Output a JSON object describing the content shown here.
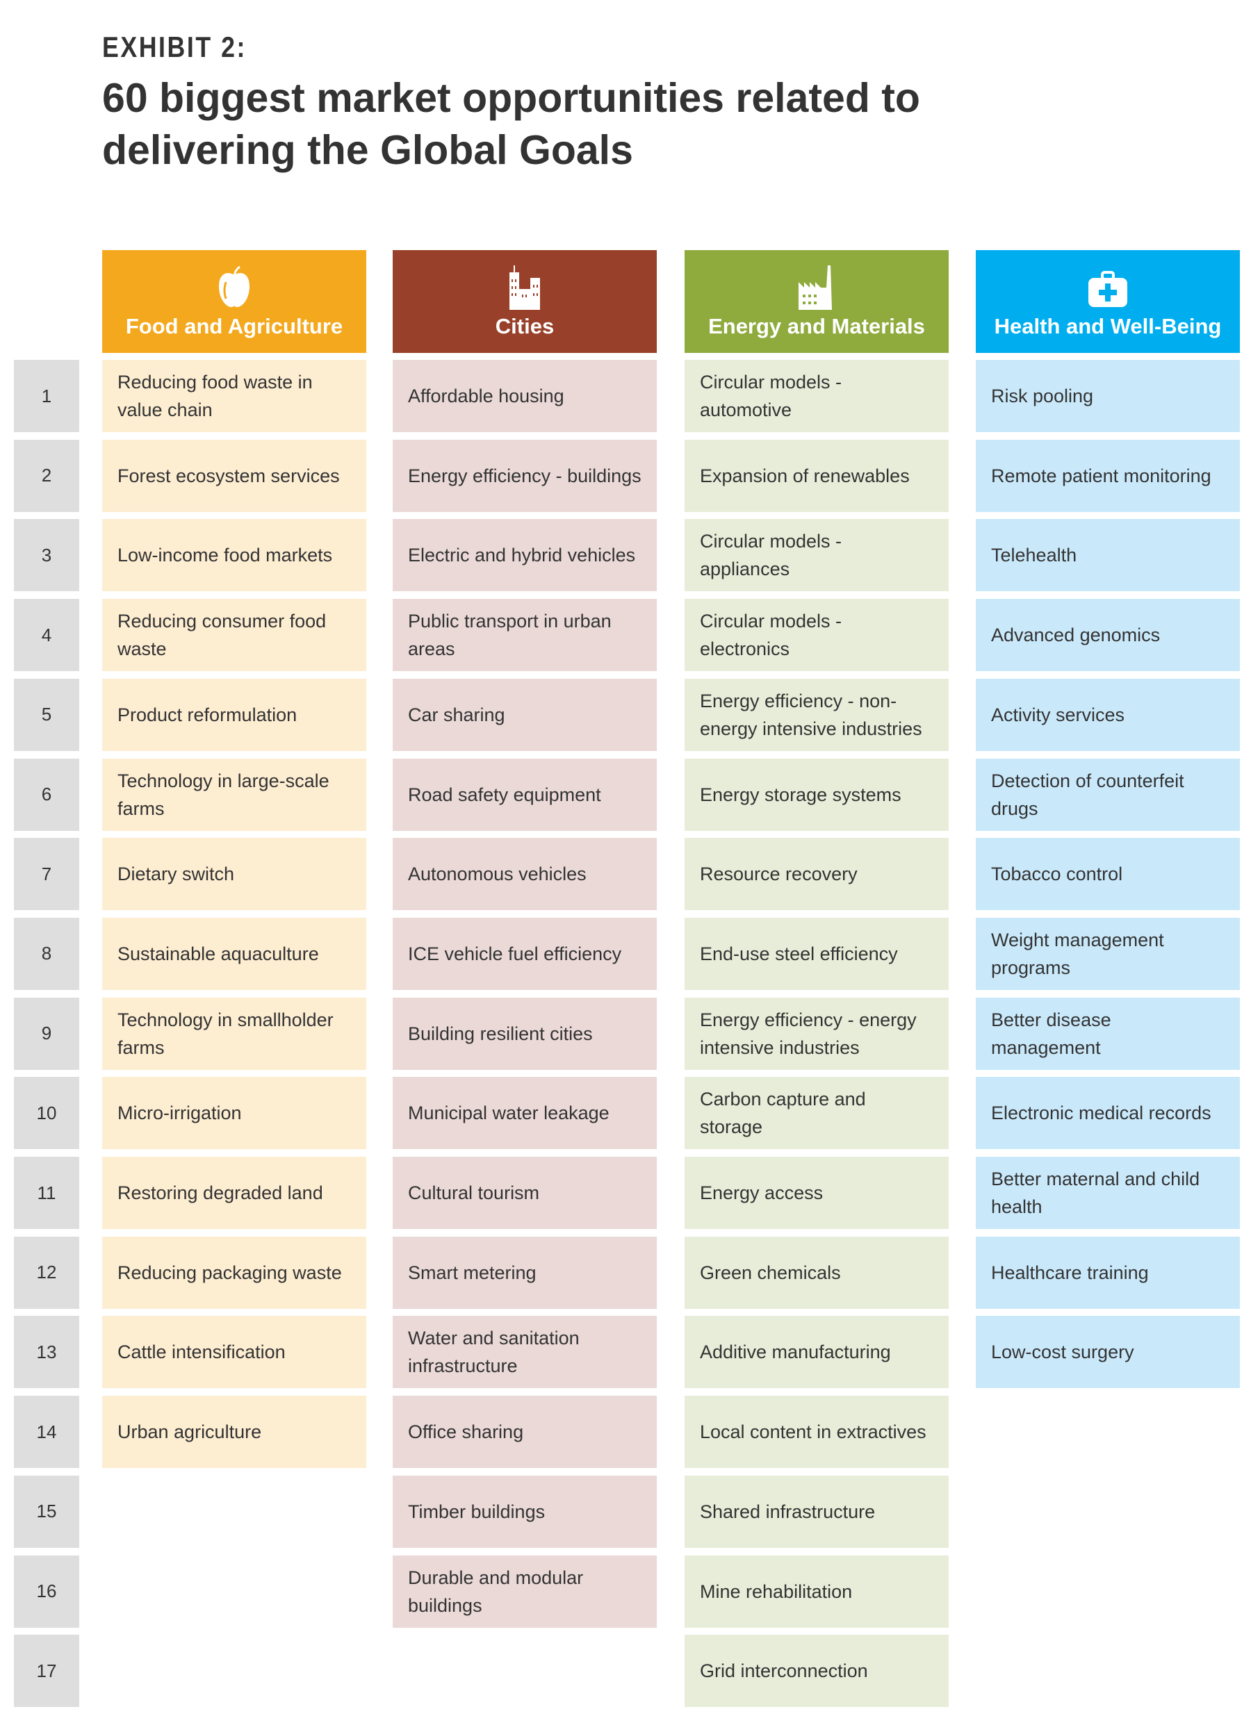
{
  "exhibit": "EXHIBIT 2:",
  "title": "60 biggest market opportunities related to delivering the Global Goals",
  "columns": [
    {
      "name": "Food and Agriculture",
      "icon": "apple-icon",
      "color": "#F4A81D",
      "light": "#FDEDD1",
      "items": [
        "Reducing food waste in value chain",
        "Forest ecosystem services",
        "Low-income food markets",
        "Reducing consumer food waste",
        "Product reformulation",
        "Technology in large-scale farms",
        "Dietary switch",
        "Sustainable aquaculture",
        "Technology in smallholder farms",
        "Micro-irrigation",
        "Restoring degraded land",
        "Reducing packaging waste",
        "Cattle intensification",
        "Urban agriculture"
      ]
    },
    {
      "name": "Cities",
      "icon": "city-buildings-icon",
      "color": "#98402A",
      "light": "#EAD9D7",
      "items": [
        "Affordable housing",
        "Energy efficiency - buildings",
        "Electric and hybrid vehicles",
        "Public transport in urban areas",
        "Car sharing",
        "Road safety equipment",
        "Autonomous vehicles",
        "ICE vehicle fuel efficiency",
        "Building resilient cities",
        "Municipal water leakage",
        "Cultural tourism",
        "Smart metering",
        "Water and sanitation infrastructure",
        "Office sharing",
        "Timber buildings",
        "Durable and modular buildings"
      ]
    },
    {
      "name": "Energy and Materials",
      "icon": "factory-icon",
      "color": "#8FAB3E",
      "light": "#E8EDD9",
      "items": [
        "Circular models - automotive",
        "Expansion of renewables",
        "Circular models - appliances",
        "Circular models - electronics",
        "Energy efficiency - non-energy intensive industries",
        "Energy storage systems",
        "Resource recovery",
        "End-use steel efficiency",
        "Energy efficiency - energy intensive industries",
        "Carbon capture and storage",
        "Energy access",
        "Green chemicals",
        "Additive manufacturing",
        "Local content in extractives",
        "Shared infrastructure",
        "Mine rehabilitation",
        "Grid interconnection"
      ]
    },
    {
      "name": "Health and Well-Being",
      "icon": "medical-kit-icon",
      "color": "#00AEEF",
      "light": "#C9E9FB",
      "items": [
        "Risk pooling",
        "Remote patient monitoring",
        "Telehealth",
        "Advanced genomics",
        "Activity services",
        "Detection of counterfeit drugs",
        "Tobacco control",
        "Weight management programs",
        "Better disease management",
        "Electronic medical records",
        "Better maternal and child health",
        "Healthcare training",
        "Low-cost surgery"
      ]
    }
  ],
  "row_numbers": [
    "1",
    "2",
    "3",
    "4",
    "5",
    "6",
    "7",
    "8",
    "9",
    "10",
    "11",
    "12",
    "13",
    "14",
    "15",
    "16",
    "17"
  ]
}
